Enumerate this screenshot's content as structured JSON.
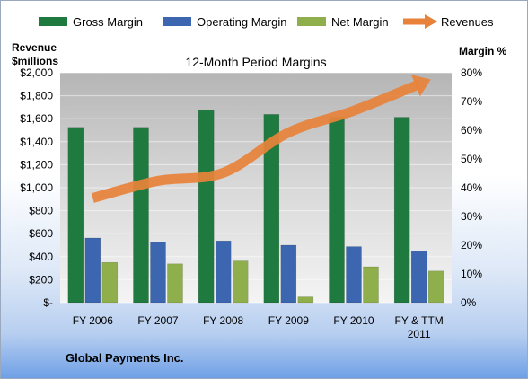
{
  "chart_data": {
    "type": "bar",
    "title": "12-Month Period Margins",
    "categories": [
      [
        "FY 2006"
      ],
      [
        "FY 2007"
      ],
      [
        "FY 2008"
      ],
      [
        "FY 2009"
      ],
      [
        "FY 2010"
      ],
      [
        "FY & TTM",
        "2011"
      ]
    ],
    "series": [
      {
        "name": "Gross Margin",
        "axis": "right",
        "unit": "%",
        "values": [
          61,
          61,
          67,
          65.5,
          64.5,
          64.5
        ],
        "color": "#1f7a3f"
      },
      {
        "name": "Operating Margin",
        "axis": "right",
        "unit": "%",
        "values": [
          22.5,
          21,
          21.5,
          20,
          19.5,
          18
        ],
        "color": "#3d66b0"
      },
      {
        "name": "Net Margin",
        "axis": "right",
        "unit": "%",
        "values": [
          14,
          13.5,
          14.5,
          2,
          12.5,
          11
        ],
        "color": "#8faf4c"
      }
    ],
    "line_series": {
      "name": "Revenues",
      "axis": "left",
      "unit": "$ millions",
      "values": [
        910,
        1060,
        1130,
        1480,
        1670,
        1900
      ],
      "color": "#e8823a"
    },
    "left_axis": {
      "title_lines": [
        "Revenue",
        "$millions"
      ],
      "min": 0,
      "max": 2000,
      "step": 200,
      "tick_labels": [
        "$-",
        "$200",
        "$400",
        "$600",
        "$800",
        "$1,000",
        "$1,200",
        "$1,400",
        "$1,600",
        "$1,800",
        "$2,000"
      ]
    },
    "right_axis": {
      "title": "Margin %",
      "min": 0,
      "max": 80,
      "step": 10,
      "tick_labels": [
        "0%",
        "10%",
        "20%",
        "30%",
        "40%",
        "50%",
        "60%",
        "70%",
        "80%"
      ]
    },
    "legend": {
      "position": "top",
      "items": [
        "Gross Margin",
        "Operating Margin",
        "Net Margin",
        "Revenues"
      ]
    },
    "grid": true,
    "footer": "Global Payments Inc."
  }
}
